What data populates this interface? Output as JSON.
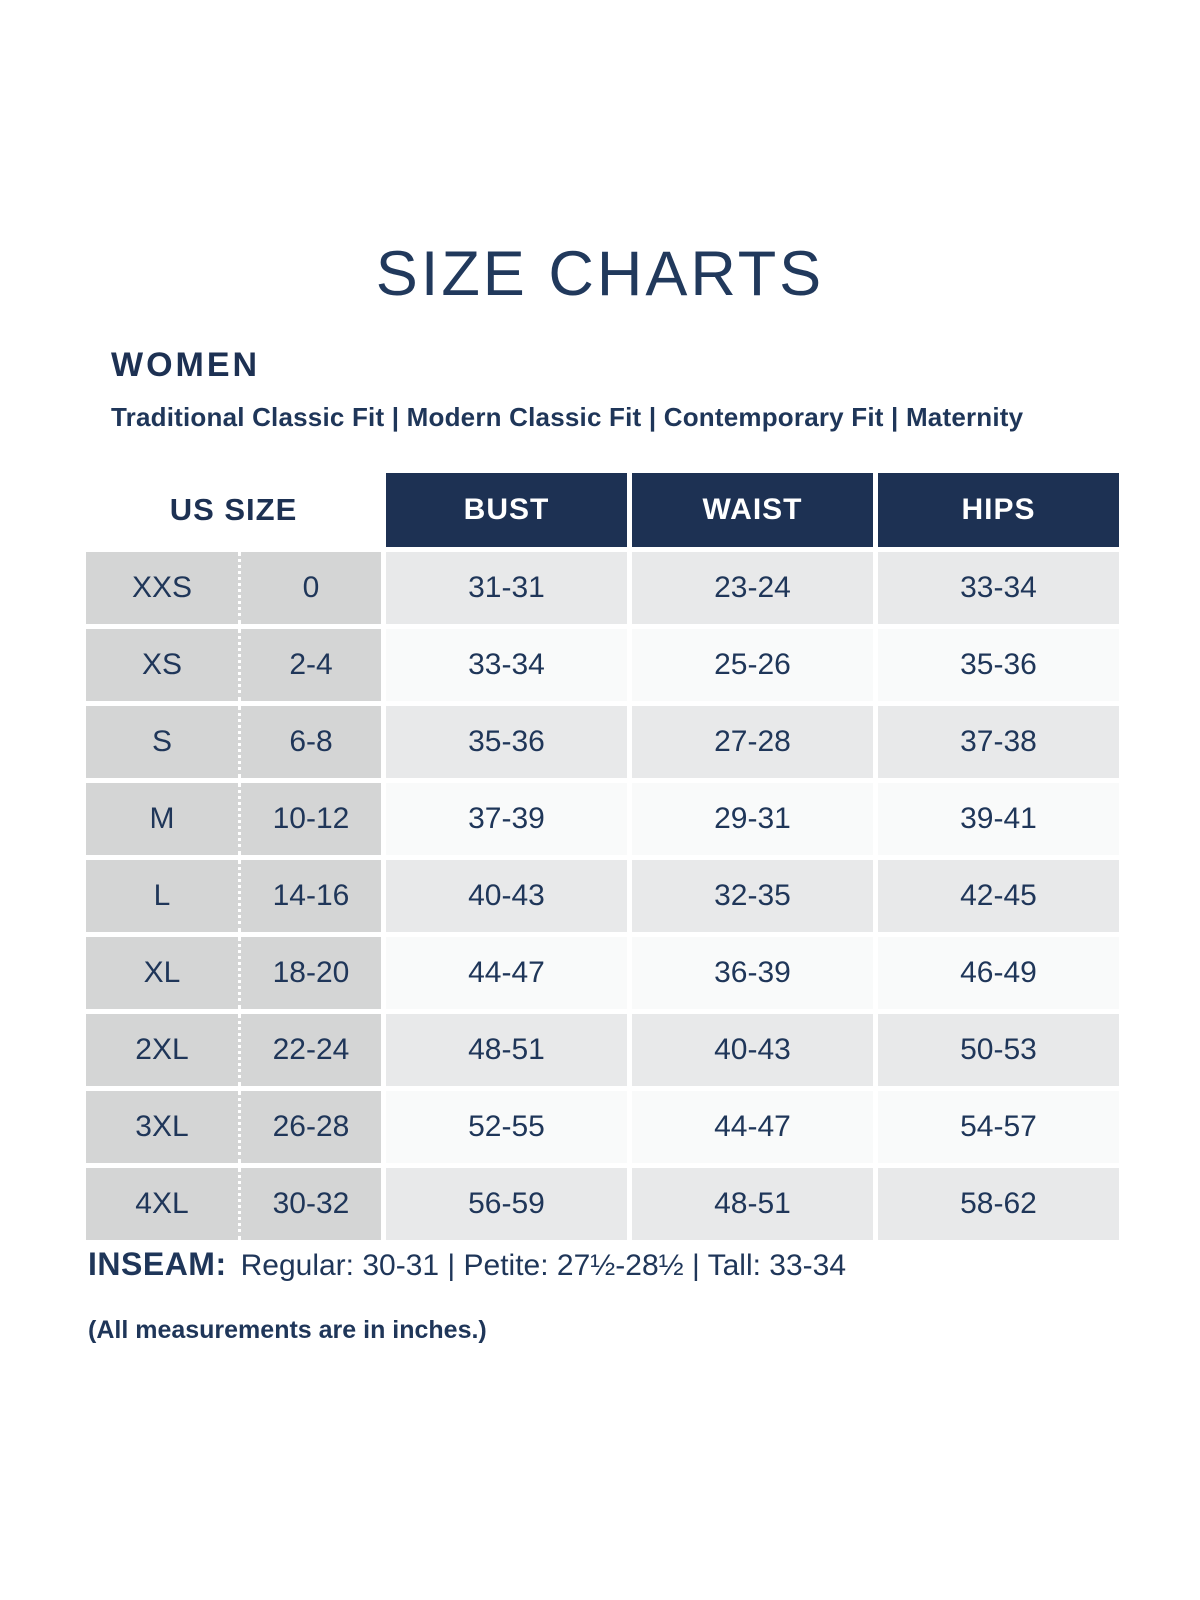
{
  "title": "SIZE CHARTS",
  "section": {
    "heading": "WOMEN",
    "fits": [
      "Traditional Classic Fit",
      "Modern Classic Fit",
      "Contemporary Fit",
      "Maternity"
    ],
    "fits_line": "Traditional Classic Fit  |  Modern Classic Fit  |  Contemporary Fit  |  Maternity"
  },
  "chart_data": {
    "type": "table",
    "title": "SIZE CHARTS",
    "group": "WOMEN",
    "fit_options": [
      "Traditional Classic Fit",
      "Modern Classic Fit",
      "Contemporary Fit",
      "Maternity"
    ],
    "us_size_header": "US SIZE",
    "measure_headers": [
      "BUST",
      "WAIST",
      "HIPS"
    ],
    "rows": [
      {
        "size": "XXS",
        "us": "0",
        "bust": "31-31",
        "waist": "23-24",
        "hips": "33-34"
      },
      {
        "size": "XS",
        "us": "2-4",
        "bust": "33-34",
        "waist": "25-26",
        "hips": "35-36"
      },
      {
        "size": "S",
        "us": "6-8",
        "bust": "35-36",
        "waist": "27-28",
        "hips": "37-38"
      },
      {
        "size": "M",
        "us": "10-12",
        "bust": "37-39",
        "waist": "29-31",
        "hips": "39-41"
      },
      {
        "size": "L",
        "us": "14-16",
        "bust": "40-43",
        "waist": "32-35",
        "hips": "42-45"
      },
      {
        "size": "XL",
        "us": "18-20",
        "bust": "44-47",
        "waist": "36-39",
        "hips": "46-49"
      },
      {
        "size": "2XL",
        "us": "22-24",
        "bust": "48-51",
        "waist": "40-43",
        "hips": "50-53"
      },
      {
        "size": "3XL",
        "us": "26-28",
        "bust": "52-55",
        "waist": "44-47",
        "hips": "54-57"
      },
      {
        "size": "4XL",
        "us": "30-32",
        "bust": "56-59",
        "waist": "48-51",
        "hips": "58-62"
      }
    ],
    "units": "inches"
  },
  "inseam": {
    "label": "INSEAM:",
    "line": "Regular: 30-31  |  Petite: 27½-28½  |  Tall: 33-34",
    "items": [
      {
        "name": "Regular",
        "value": "30-31"
      },
      {
        "name": "Petite",
        "value": "27½-28½"
      },
      {
        "name": "Tall",
        "value": "33-34"
      }
    ]
  },
  "note": "(All measurements are in inches.)",
  "colors": {
    "navy_header": "#1d3153",
    "text_navy": "#1f3659",
    "size_col_gray": "#d4d5d5",
    "row_gray": "#e8e9ea",
    "row_white": "#f9fafa"
  }
}
